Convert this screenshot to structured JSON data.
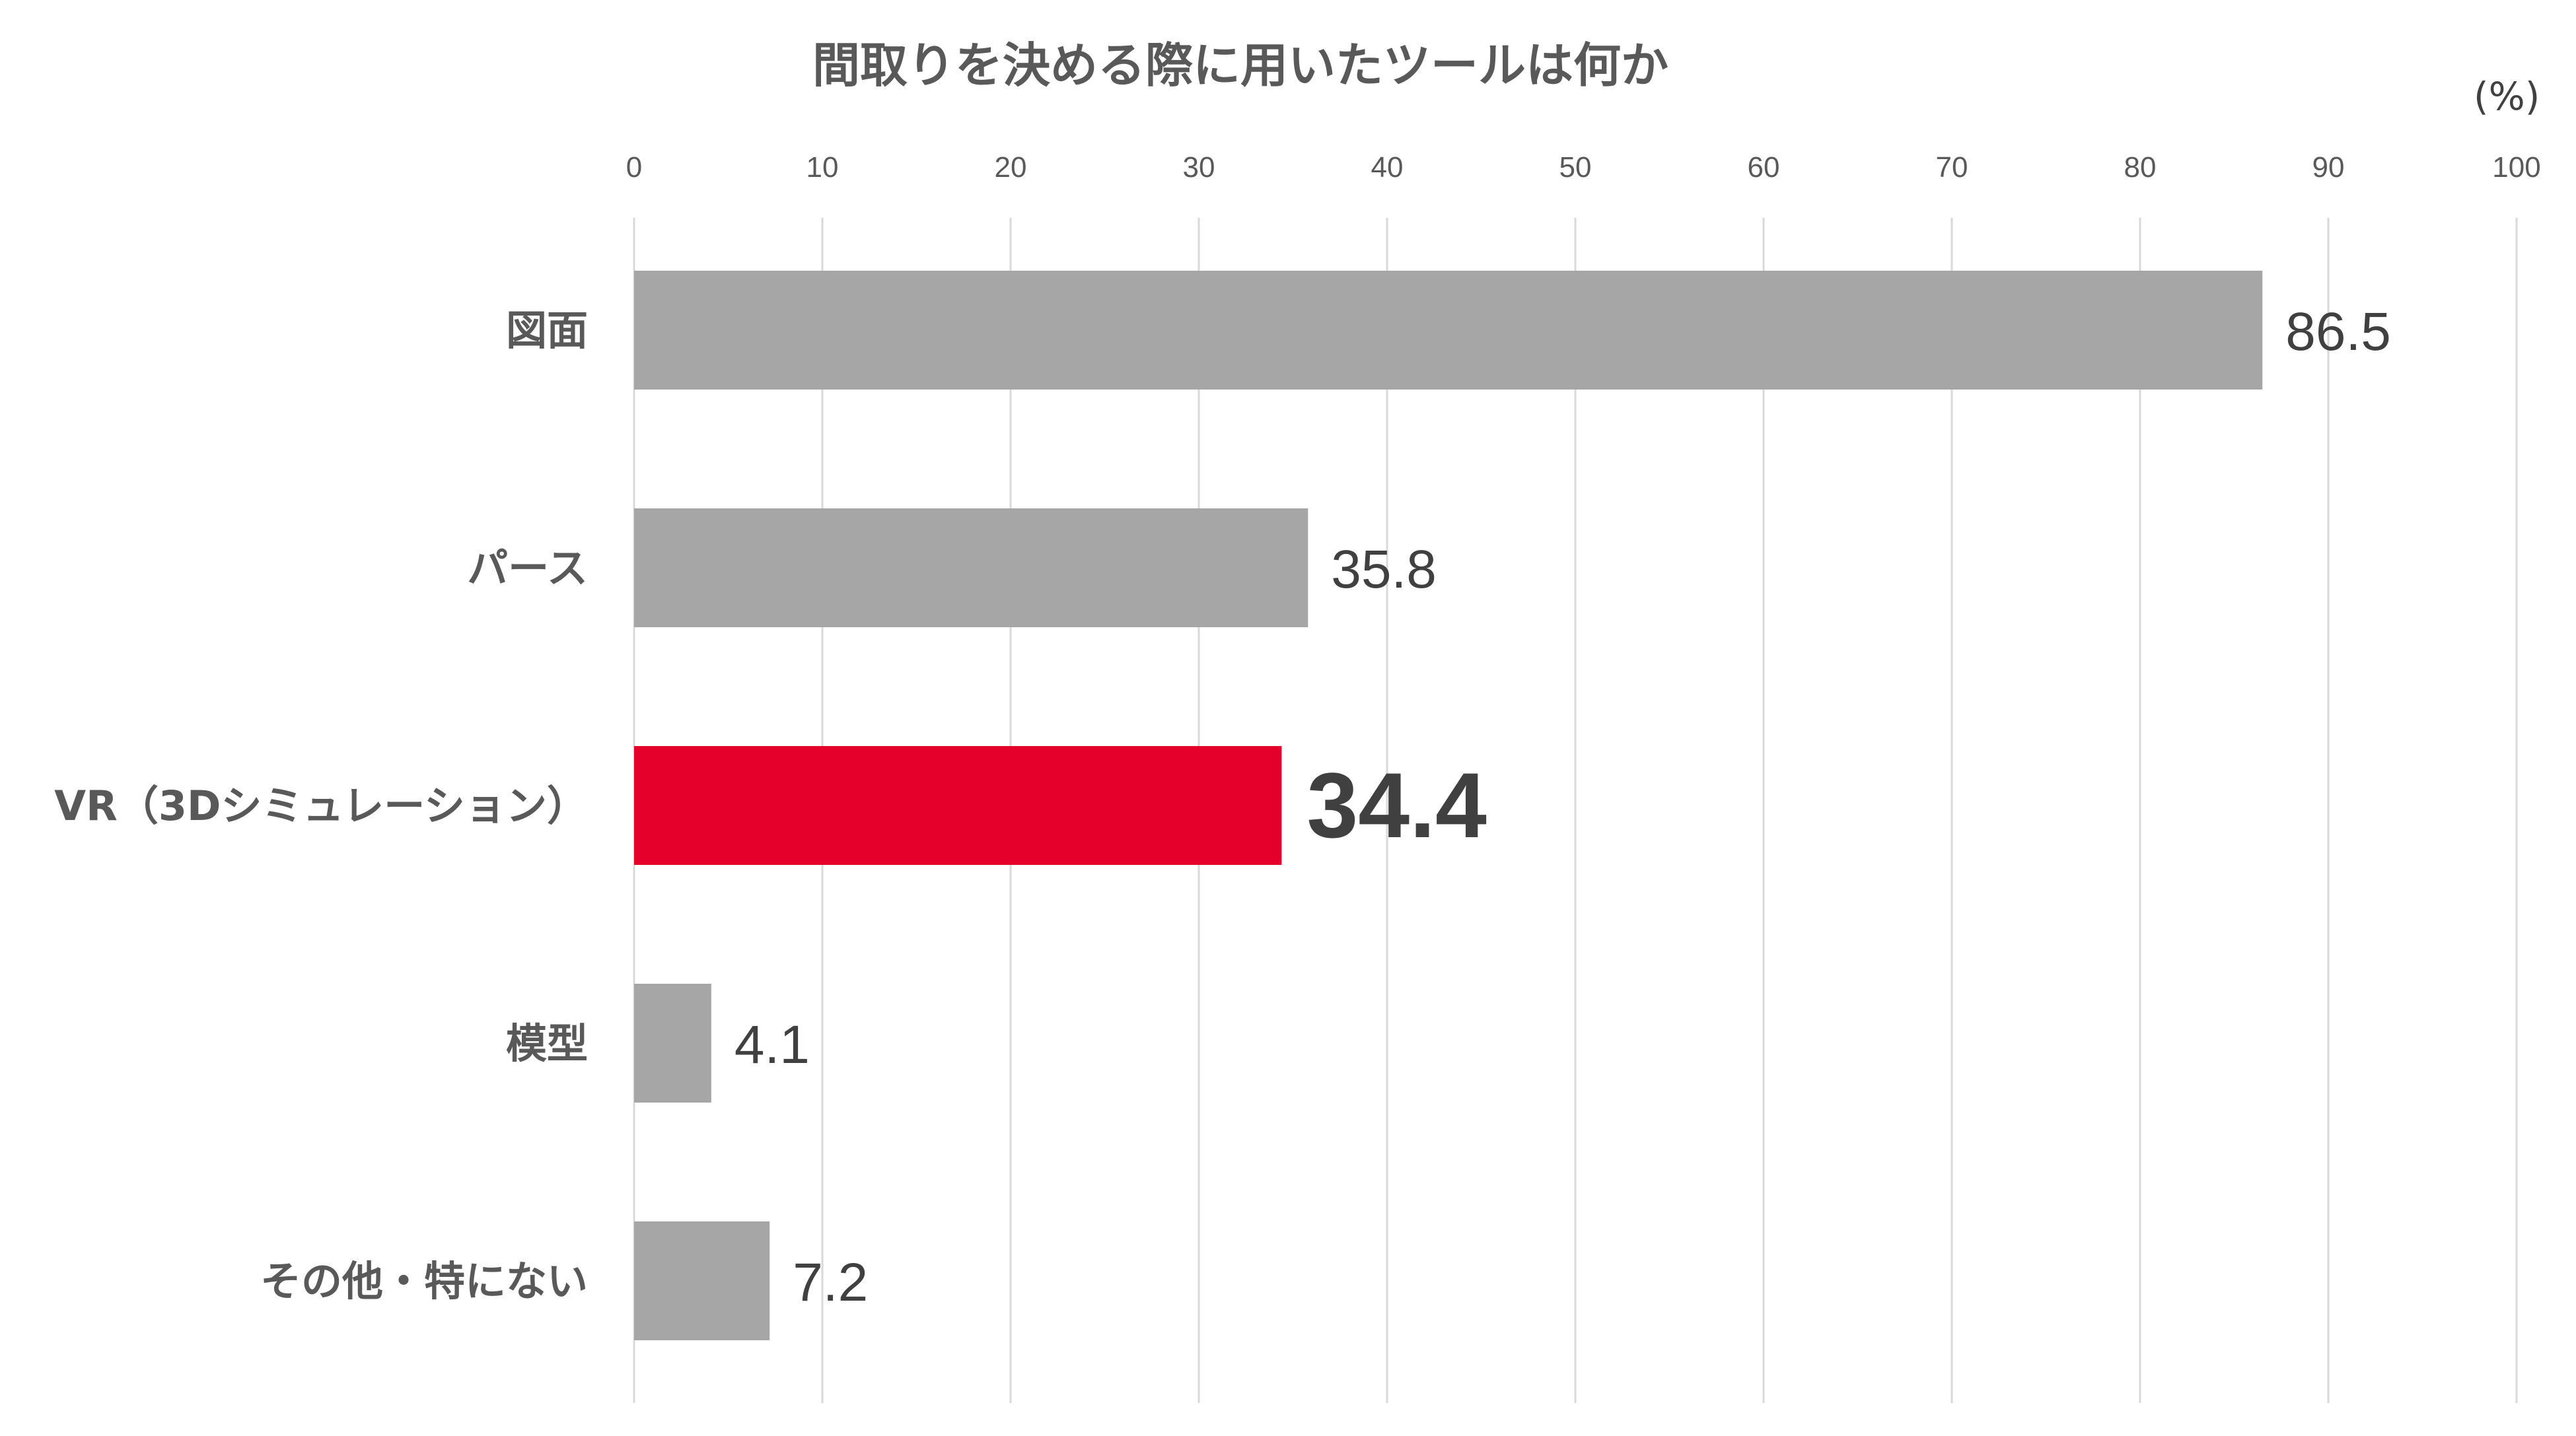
{
  "chart_data": {
    "type": "bar",
    "orientation": "horizontal",
    "title": "間取りを決める際に用いたツールは何か",
    "unit_label": "(%)",
    "xlim": [
      0,
      100
    ],
    "x_ticks": [
      "0",
      "10",
      "20",
      "30",
      "40",
      "50",
      "60",
      "70",
      "80",
      "90",
      "100"
    ],
    "grid": true,
    "categories": [
      "図面",
      "パース",
      "VR（3Dシミュレーション）",
      "模型",
      "その他・特にない"
    ],
    "values": [
      86.5,
      35.8,
      34.4,
      4.1,
      7.2
    ],
    "value_labels": [
      "86.5",
      "35.8",
      "34.4",
      "4.1",
      "7.2"
    ],
    "highlight_index": 2,
    "colors": {
      "bar": "#a6a6a6",
      "highlight": "#e4002b",
      "grid": "#d9d9d9",
      "text": "#595959"
    }
  }
}
